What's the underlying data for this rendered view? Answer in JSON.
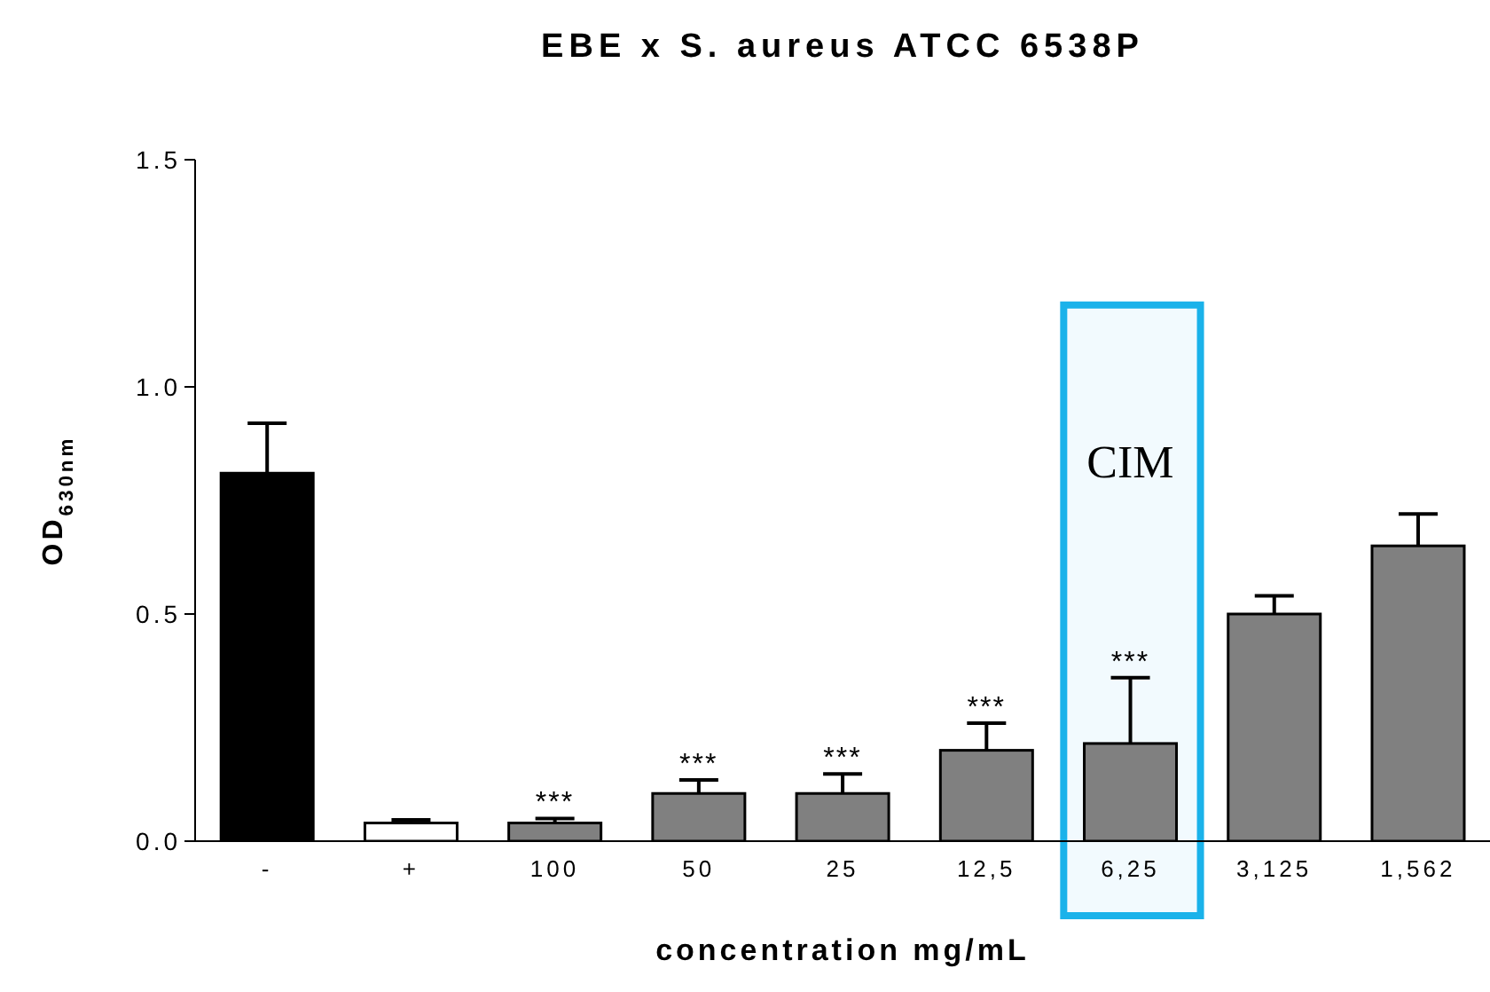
{
  "chart_data": {
    "type": "bar",
    "title": "EBE x S. aureus ATCC 6538P",
    "xlabel": "concentration mg/mL",
    "ylabel": "OD$_{630nm}$",
    "categories": [
      "-",
      "+",
      "100",
      "50",
      "25",
      "12,5",
      "6,25",
      "3,125",
      "1,562"
    ],
    "values": [
      0.81,
      0.04,
      0.04,
      0.105,
      0.105,
      0.2,
      0.215,
      0.5,
      0.65
    ],
    "errors": [
      0.11,
      0.007,
      0.01,
      0.03,
      0.043,
      0.06,
      0.145,
      0.04,
      0.07
    ],
    "colors": [
      "#000000",
      "#ffffff",
      "#808080",
      "#808080",
      "#808080",
      "#808080",
      "#808080",
      "#808080",
      "#808080"
    ],
    "ylim": [
      0,
      1.5
    ],
    "yticks": [
      {
        "value": 0,
        "label": "0.0"
      },
      {
        "value": 0.5,
        "label": "0.5"
      },
      {
        "value": 1,
        "label": "1.0"
      },
      {
        "value": 1.5,
        "label": "1.5"
      }
    ],
    "annotations": [
      {
        "text": "***",
        "x": "100",
        "y": 0.05
      },
      {
        "text": "***",
        "x": "50",
        "y": 0.135
      },
      {
        "text": "***",
        "x": "25",
        "y": 0.148
      },
      {
        "text": "***",
        "x": "12,5",
        "y": 0.26
      },
      {
        "text": "***",
        "x": "6,25",
        "y": 0.36
      }
    ],
    "bands": [
      {
        "axis": "x",
        "from": "6,25",
        "to": "6,25",
        "label": "CIM",
        "color": "#1ab2ea"
      }
    ],
    "grid": false,
    "legend": false
  }
}
